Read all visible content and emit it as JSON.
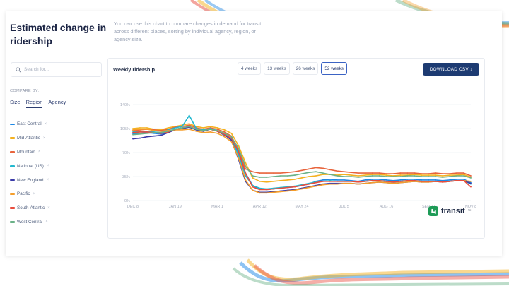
{
  "page": {
    "title": "Estimated change in ridership",
    "description": "You can use this chart to compare changes in demand for transit across different places, sorting by individual agency, region, or agency size."
  },
  "search": {
    "placeholder": "Search for..."
  },
  "compare": {
    "label": "COMPARE BY:",
    "tabs": [
      {
        "label": "Size",
        "active": false
      },
      {
        "label": "Region",
        "active": true
      },
      {
        "label": "Agency",
        "active": false
      }
    ]
  },
  "legend": {
    "remove_glyph": "×",
    "items": [
      {
        "label": "East Central",
        "color": "#1e88e5"
      },
      {
        "label": "Mid-Atlantic",
        "color": "#f4b120"
      },
      {
        "label": "Mountain",
        "color": "#e8643c"
      },
      {
        "label": "National (US)",
        "color": "#22b8cf"
      },
      {
        "label": "New England",
        "color": "#3a3aa8"
      },
      {
        "label": "Pacific",
        "color": "#f59e2b"
      },
      {
        "label": "South-Atlantic",
        "color": "#e84c3d"
      },
      {
        "label": "West Central",
        "color": "#6ab187"
      }
    ]
  },
  "chart_panel": {
    "title": "Weekly ridership",
    "ranges": [
      {
        "label": "4 weeks",
        "active": false
      },
      {
        "label": "13 weeks",
        "active": false
      },
      {
        "label": "26 weeks",
        "active": false
      },
      {
        "label": "52 weeks",
        "active": true
      }
    ],
    "download_label": "DOWNLOAD CSV ↓"
  },
  "brand": {
    "name": "transit",
    "tm": "™"
  },
  "chart_data": {
    "type": "line",
    "title": "Weekly ridership",
    "ylim": [
      0,
      140
    ],
    "y_ticks": [
      "0%",
      "35%",
      "70%",
      "105%",
      "140%"
    ],
    "x_ticks": [
      "DEC 8",
      "JAN 19",
      "MAR 1",
      "APR 12",
      "MAY 24",
      "JUL 5",
      "AUG 16",
      "SEP 27",
      "NOV 8"
    ],
    "x_count": 49,
    "series": [
      {
        "name": "East Central",
        "values": [
          97,
          98,
          99,
          98,
          97,
          100,
          104,
          106,
          108,
          104,
          102,
          104,
          101,
          95,
          90,
          70,
          40,
          22,
          17,
          16,
          17,
          18,
          19,
          20,
          22,
          24,
          28,
          30,
          31,
          30,
          30,
          29,
          28,
          30,
          31,
          31,
          30,
          29,
          30,
          31,
          31,
          30,
          30,
          30,
          29,
          30,
          31,
          31,
          26
        ]
      },
      {
        "name": "Mid-Atlantic",
        "values": [
          105,
          106,
          106,
          104,
          103,
          106,
          108,
          110,
          112,
          108,
          106,
          108,
          106,
          103,
          98,
          80,
          55,
          33,
          28,
          27,
          28,
          29,
          30,
          31,
          33,
          35,
          36,
          38,
          38,
          37,
          38,
          37,
          36,
          37,
          38,
          38,
          37,
          36,
          37,
          37,
          38,
          37,
          37,
          37,
          36,
          37,
          37,
          38,
          34
        ]
      },
      {
        "name": "Mountain",
        "values": [
          102,
          103,
          104,
          103,
          102,
          104,
          107,
          108,
          110,
          106,
          104,
          106,
          104,
          100,
          94,
          72,
          46,
          42,
          40,
          40,
          40,
          40,
          41,
          42,
          44,
          46,
          48,
          47,
          45,
          43,
          42,
          41,
          40,
          40,
          40,
          40,
          39,
          39,
          40,
          40,
          40,
          39,
          39,
          40,
          39,
          39,
          40,
          40,
          36
        ]
      },
      {
        "name": "National (US)",
        "values": [
          100,
          101,
          101,
          100,
          99,
          103,
          106,
          108,
          124,
          105,
          103,
          105,
          102,
          97,
          90,
          66,
          36,
          22,
          18,
          17,
          18,
          19,
          20,
          21,
          23,
          25,
          27,
          28,
          29,
          28,
          28,
          28,
          27,
          28,
          29,
          29,
          28,
          27,
          28,
          29,
          29,
          28,
          28,
          28,
          27,
          28,
          29,
          29,
          24
        ]
      },
      {
        "name": "New England",
        "values": [
          90,
          91,
          93,
          94,
          95,
          99,
          103,
          105,
          107,
          103,
          101,
          104,
          101,
          96,
          88,
          60,
          28,
          15,
          12,
          12,
          13,
          14,
          15,
          16,
          18,
          20,
          22,
          24,
          25,
          25,
          25,
          25,
          24,
          25,
          26,
          27,
          26,
          25,
          26,
          27,
          28,
          27,
          27,
          28,
          27,
          28,
          29,
          29,
          25
        ]
      },
      {
        "name": "Pacific",
        "values": [
          103,
          104,
          104,
          102,
          101,
          102,
          103,
          103,
          104,
          101,
          99,
          100,
          98,
          93,
          86,
          62,
          30,
          15,
          11,
          11,
          12,
          13,
          14,
          15,
          17,
          19,
          21,
          23,
          24,
          24,
          25,
          25,
          24,
          25,
          26,
          27,
          26,
          25,
          26,
          27,
          28,
          27,
          27,
          28,
          27,
          28,
          29,
          29,
          28
        ]
      },
      {
        "name": "South-Atlantic",
        "values": [
          99,
          100,
          100,
          99,
          98,
          100,
          104,
          106,
          108,
          104,
          102,
          104,
          101,
          96,
          91,
          72,
          40,
          20,
          16,
          16,
          17,
          18,
          19,
          20,
          22,
          24,
          26,
          28,
          28,
          28,
          28,
          28,
          27,
          28,
          29,
          29,
          28,
          27,
          28,
          29,
          29,
          28,
          28,
          28,
          27,
          28,
          29,
          29,
          20
        ]
      },
      {
        "name": "West Central",
        "values": [
          96,
          97,
          98,
          99,
          99,
          101,
          104,
          106,
          108,
          104,
          102,
          104,
          102,
          98,
          93,
          76,
          50,
          36,
          34,
          34,
          35,
          36,
          36,
          37,
          39,
          41,
          42,
          40,
          38,
          36,
          35,
          35,
          34,
          35,
          36,
          36,
          35,
          35,
          35,
          36,
          36,
          35,
          35,
          35,
          34,
          35,
          36,
          36,
          33
        ]
      }
    ]
  }
}
